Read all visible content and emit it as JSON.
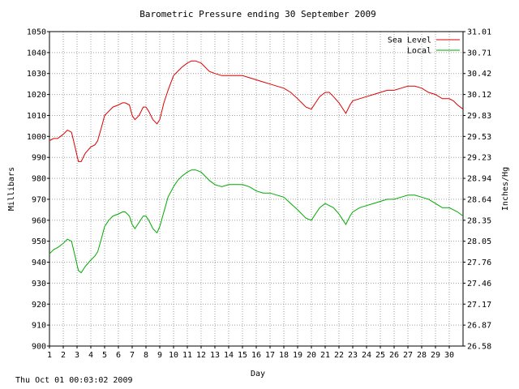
{
  "footer": {
    "timestamp": "Thu Oct 01 00:03:02 2009"
  },
  "chart_data": {
    "type": "line",
    "title": "Barometric Pressure ending 30 September 2009",
    "xlabel": "Day",
    "ylabel": "Millibars",
    "ylabel_right": "Inches/Hg",
    "xlim": [
      1,
      31
    ],
    "ylim": [
      900,
      1050
    ],
    "x_ticks": [
      "1",
      "2",
      "3",
      "4",
      "5",
      "6",
      "7",
      "8",
      "9",
      "10",
      "11",
      "12",
      "13",
      "14",
      "15",
      "16",
      "17",
      "18",
      "19",
      "20",
      "21",
      "22",
      "23",
      "24",
      "25",
      "26",
      "27",
      "28",
      "29",
      "30"
    ],
    "y_ticks": [
      900,
      910,
      920,
      930,
      940,
      950,
      960,
      970,
      980,
      990,
      1000,
      1010,
      1020,
      1030,
      1040,
      1050
    ],
    "y_ticks_right": [
      "26.58",
      "26.87",
      "27.17",
      "27.46",
      "27.76",
      "28.05",
      "28.35",
      "28.64",
      "28.94",
      "29.23",
      "29.53",
      "29.83",
      "30.12",
      "30.42",
      "30.71",
      "31.01"
    ],
    "grid": true,
    "legend": "top-right",
    "series": [
      {
        "name": "Sea Level",
        "color": "#dd0000",
        "x": [
          1.0,
          1.3,
          1.6,
          2.0,
          2.3,
          2.6,
          2.85,
          3.1,
          3.3,
          3.6,
          4.0,
          4.3,
          4.5,
          4.8,
          5.0,
          5.3,
          5.6,
          6.0,
          6.3,
          6.5,
          6.8,
          7.0,
          7.2,
          7.5,
          7.8,
          8.0,
          8.2,
          8.5,
          8.8,
          9.0,
          9.3,
          9.6,
          10.0,
          10.3,
          10.6,
          11.0,
          11.3,
          11.6,
          12.0,
          12.3,
          12.6,
          13.0,
          13.5,
          14.0,
          14.5,
          15.0,
          15.5,
          16.0,
          16.5,
          17.0,
          17.5,
          18.0,
          18.5,
          19.0,
          19.3,
          19.6,
          20.0,
          20.3,
          20.6,
          21.0,
          21.3,
          21.6,
          22.0,
          22.2,
          22.5,
          22.8,
          23.0,
          23.5,
          24.0,
          24.5,
          25.0,
          25.5,
          26.0,
          26.5,
          27.0,
          27.5,
          28.0,
          28.5,
          29.0,
          29.5,
          30.0,
          30.3,
          30.6,
          31.0
        ],
        "values": [
          998,
          999,
          999,
          1001,
          1003,
          1002,
          995,
          988,
          988,
          992,
          995,
          996,
          998,
          1005,
          1010,
          1012,
          1014,
          1015,
          1016,
          1016,
          1015,
          1010,
          1008,
          1010,
          1014,
          1014,
          1012,
          1008,
          1006,
          1008,
          1016,
          1022,
          1029,
          1031,
          1033,
          1035,
          1036,
          1036,
          1035,
          1033,
          1031,
          1030,
          1029,
          1029,
          1029,
          1029,
          1028,
          1027,
          1026,
          1025,
          1024,
          1023,
          1021,
          1018,
          1016,
          1014,
          1013,
          1016,
          1019,
          1021,
          1021,
          1019,
          1016,
          1014,
          1011,
          1015,
          1017,
          1018,
          1019,
          1020,
          1021,
          1022,
          1022,
          1023,
          1024,
          1024,
          1023,
          1021,
          1020,
          1018,
          1018,
          1017,
          1015,
          1013
        ]
      },
      {
        "name": "Local",
        "color": "#00aa00",
        "x": [
          1.0,
          1.3,
          1.6,
          2.0,
          2.3,
          2.6,
          2.85,
          3.1,
          3.3,
          3.6,
          4.0,
          4.3,
          4.5,
          4.8,
          5.0,
          5.3,
          5.6,
          6.0,
          6.3,
          6.5,
          6.8,
          7.0,
          7.2,
          7.5,
          7.8,
          8.0,
          8.2,
          8.5,
          8.8,
          9.0,
          9.3,
          9.6,
          10.0,
          10.3,
          10.6,
          11.0,
          11.3,
          11.6,
          12.0,
          12.3,
          12.6,
          13.0,
          13.5,
          14.0,
          14.5,
          15.0,
          15.5,
          16.0,
          16.5,
          17.0,
          17.5,
          18.0,
          18.5,
          19.0,
          19.3,
          19.6,
          20.0,
          20.3,
          20.6,
          21.0,
          21.3,
          21.6,
          22.0,
          22.2,
          22.5,
          22.8,
          23.0,
          23.5,
          24.0,
          24.5,
          25.0,
          25.5,
          26.0,
          26.5,
          27.0,
          27.5,
          28.0,
          28.5,
          29.0,
          29.5,
          30.0,
          30.3,
          30.6,
          31.0
        ],
        "values": [
          944,
          946,
          947,
          949,
          951,
          950,
          943,
          936,
          935,
          938,
          941,
          943,
          945,
          952,
          957,
          960,
          962,
          963,
          964,
          964,
          962,
          958,
          956,
          959,
          962,
          962,
          960,
          956,
          954,
          957,
          964,
          971,
          976,
          979,
          981,
          983,
          984,
          984,
          983,
          981,
          979,
          977,
          976,
          977,
          977,
          977,
          976,
          974,
          973,
          973,
          972,
          971,
          968,
          965,
          963,
          961,
          960,
          963,
          966,
          968,
          967,
          966,
          963,
          961,
          958,
          962,
          964,
          966,
          967,
          968,
          969,
          970,
          970,
          971,
          972,
          972,
          971,
          970,
          968,
          966,
          966,
          965,
          964,
          962
        ]
      }
    ]
  }
}
